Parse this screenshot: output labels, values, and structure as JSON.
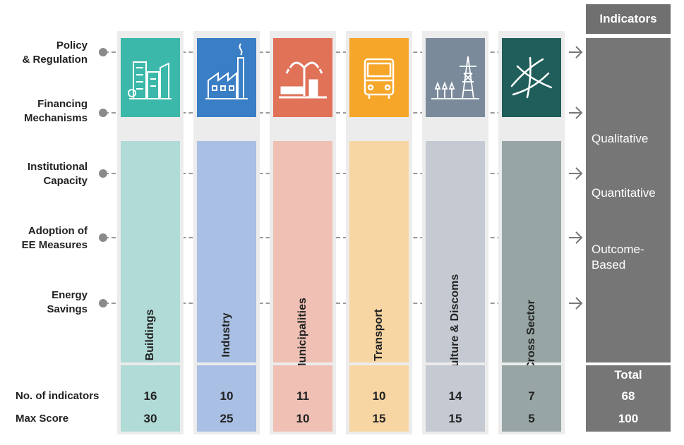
{
  "left_labels": [
    {
      "text_1": "Policy",
      "text_2": "& Regulation"
    },
    {
      "text_1": "Financing",
      "text_2": "Mechanisms"
    },
    {
      "text_1": "Institutional",
      "text_2": "Capacity"
    },
    {
      "text_1": "Adoption of",
      "text_2": "EE Measures"
    },
    {
      "text_1": "Energy",
      "text_2": "Savings"
    }
  ],
  "row_labels": {
    "indicators": "No. of indicators",
    "max_score": "Max Score"
  },
  "sectors": [
    {
      "name": "Buildings",
      "indicators": "16",
      "max_score": "30",
      "icon": "buildings-icon",
      "icon_color": "#3bb8a9",
      "body_color": "#b0dbd6"
    },
    {
      "name": "Industry",
      "indicators": "10",
      "max_score": "25",
      "icon": "factory-icon",
      "icon_color": "#3a7ec5",
      "body_color": "#a9bfe3"
    },
    {
      "name": "Municipalities",
      "indicators": "11",
      "max_score": "10",
      "icon": "streetlight-icon",
      "icon_color": "#e07258",
      "body_color": "#efc0b3"
    },
    {
      "name": "Transport",
      "indicators": "10",
      "max_score": "15",
      "icon": "bus-icon",
      "icon_color": "#f6a629",
      "body_color": "#f8d6a3"
    },
    {
      "name": "Agriculture & Discoms",
      "indicators": "14",
      "max_score": "15",
      "icon": "power-tower-icon",
      "icon_color": "#7a8a9b",
      "body_color": "#c4c9d2"
    },
    {
      "name": "Cross Sector",
      "indicators": "7",
      "max_score": "5",
      "icon": "network-icon",
      "icon_color": "#1f5e5a",
      "body_color": "#97a5a5"
    }
  ],
  "indicators_panel": {
    "title": "Indicators",
    "items": [
      "Qualitative",
      "Quantitative",
      "Outcome-",
      "Based"
    ],
    "total_label": "Total",
    "total_indicators": "68",
    "total_score": "100"
  }
}
